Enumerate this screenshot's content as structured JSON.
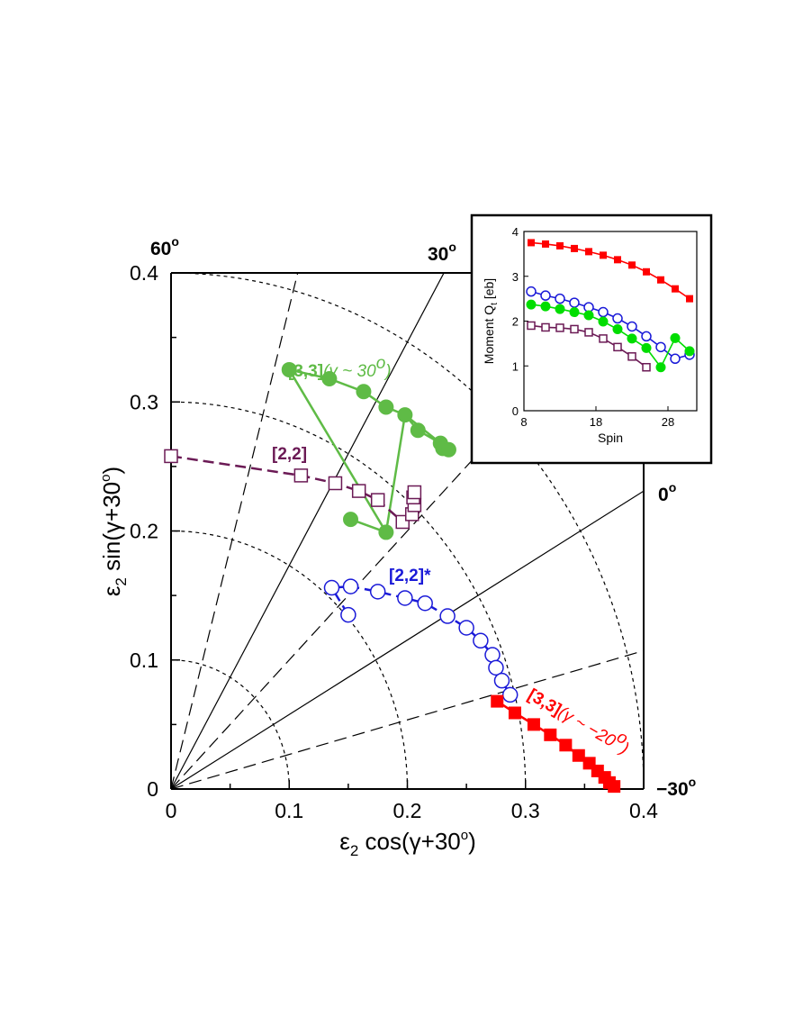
{
  "chart_data": [
    {
      "type": "scatter",
      "plot": "main",
      "title": "",
      "xlabel": "ε2 cos(γ+30o)",
      "ylabel": "ε2 sin(γ+30o)",
      "xlim": [
        0,
        0.4
      ],
      "ylim": [
        0,
        0.4
      ],
      "x_ticks": [
        "0",
        "0.1",
        "0.2",
        "0.3",
        "0.4"
      ],
      "y_ticks": [
        "0",
        "0.1",
        "0.2",
        "0.3",
        "0.4"
      ],
      "grid": false,
      "polar_arcs_radii": [
        0.1,
        0.2,
        0.3,
        0.4
      ],
      "solid_rays_deg": [
        30,
        60
      ],
      "dashed_rays_deg": [
        15,
        45,
        75
      ],
      "gamma_labels": [
        {
          "text": "60",
          "sup": "o"
        },
        {
          "text": "30",
          "sup": "o"
        },
        {
          "text": "0",
          "sup": "o"
        },
        {
          "text": "−30",
          "sup": "o"
        }
      ],
      "series": [
        {
          "name": "[3,3]",
          "annotation": "(γ ~ 30",
          "annotation_sup": "o",
          "annotation_close": ")",
          "color": "#5fbb46",
          "marker": "filled-circle",
          "line": "solid",
          "points": [
            [
              0.1,
              0.325
            ],
            [
              0.12,
              0.318
            ],
            [
              0.14,
              0.308
            ],
            [
              0.163,
              0.296
            ],
            [
              0.18,
              0.29
            ],
            [
              0.195,
              0.278
            ],
            [
              0.208,
              0.268
            ],
            [
              0.21,
              0.262
            ],
            [
              0.213,
              0.262
            ],
            [
              0.22,
              0.262
            ],
            [
              0.226,
              0.262
            ],
            [
              0.228,
              0.264
            ],
            [
              0.222,
              0.268
            ],
            [
              0.218,
              0.264
            ],
            [
              0.182,
              0.2
            ],
            [
              0.152,
              0.21
            ]
          ],
          "display_points": [
            [
              0.1,
              0.325
            ],
            [
              0.134,
              0.318
            ],
            [
              0.163,
              0.308
            ],
            [
              0.182,
              0.296
            ],
            [
              0.198,
              0.29
            ],
            [
              0.209,
              0.278
            ],
            [
              0.228,
              0.268
            ],
            [
              0.23,
              0.264
            ],
            [
              0.235,
              0.263
            ],
            [
              0.182,
              0.199
            ],
            [
              0.152,
              0.209
            ]
          ],
          "path_order": [
            0,
            1,
            2,
            3,
            4,
            5,
            6,
            7,
            8,
            4,
            9,
            10,
            9,
            0
          ]
        },
        {
          "name": "[2,2]",
          "color": "#6b1a55",
          "marker": "open-square",
          "line": "dashed",
          "points": [
            [
              0.0,
              0.258
            ],
            [
              0.11,
              0.243
            ],
            [
              0.139,
              0.237
            ],
            [
              0.159,
              0.231
            ],
            [
              0.175,
              0.224
            ],
            [
              0.196,
              0.207
            ],
            [
              0.204,
              0.213
            ],
            [
              0.206,
              0.22
            ],
            [
              0.205,
              0.226
            ],
            [
              0.206,
              0.23
            ]
          ]
        },
        {
          "name": "[2,2]*",
          "color": "#1a1ad8",
          "marker": "open-circle",
          "line": "dashed",
          "points": [
            [
              0.15,
              0.135
            ],
            [
              0.136,
              0.156
            ],
            [
              0.152,
              0.157
            ],
            [
              0.175,
              0.153
            ],
            [
              0.198,
              0.148
            ],
            [
              0.215,
              0.144
            ],
            [
              0.234,
              0.134
            ],
            [
              0.25,
              0.125
            ],
            [
              0.262,
              0.115
            ],
            [
              0.272,
              0.104
            ],
            [
              0.275,
              0.094
            ],
            [
              0.28,
              0.084
            ],
            [
              0.287,
              0.073
            ]
          ]
        },
        {
          "name": "[3,3]",
          "annotation": "(γ ~ −20",
          "annotation_sup": "o",
          "annotation_close": ")",
          "color": "#ff0000",
          "marker": "filled-square",
          "line": "solid",
          "points": [
            [
              0.276,
              0.068
            ],
            [
              0.291,
              0.059
            ],
            [
              0.307,
              0.05
            ],
            [
              0.321,
              0.042
            ],
            [
              0.334,
              0.034
            ],
            [
              0.345,
              0.026
            ],
            [
              0.354,
              0.02
            ],
            [
              0.361,
              0.014
            ],
            [
              0.367,
              0.009
            ],
            [
              0.371,
              0.005
            ],
            [
              0.375,
              0.002
            ]
          ]
        }
      ]
    },
    {
      "type": "line",
      "plot": "inset",
      "title": "",
      "xlabel": "Spin",
      "ylabel": "Moment  Q",
      "ylabel_sub": "t",
      "ylabel_unit": "[eb]",
      "xlim": [
        8,
        32
      ],
      "ylim": [
        0,
        4
      ],
      "x_ticks": [
        "8",
        "18",
        "28"
      ],
      "y_ticks": [
        "0",
        "1",
        "2",
        "3",
        "4"
      ],
      "grid": false,
      "series": [
        {
          "color": "#ff0000",
          "marker": "filled-square",
          "x": [
            9,
            11,
            13,
            15,
            17,
            19,
            21,
            23,
            25,
            27,
            29,
            31
          ],
          "y": [
            3.75,
            3.72,
            3.68,
            3.62,
            3.55,
            3.47,
            3.37,
            3.25,
            3.1,
            2.92,
            2.72,
            2.5
          ]
        },
        {
          "color": "#1a1ad8",
          "marker": "open-circle",
          "x": [
            9,
            11,
            13,
            15,
            17,
            19,
            21,
            23,
            25,
            27,
            29,
            31
          ],
          "y": [
            2.66,
            2.57,
            2.5,
            2.41,
            2.31,
            2.2,
            2.06,
            1.88,
            1.66,
            1.42,
            1.16,
            1.25
          ]
        },
        {
          "color": "#00dd00",
          "marker": "filled-circle",
          "x": [
            9,
            11,
            13,
            15,
            17,
            19,
            21,
            23,
            25,
            27,
            29,
            31
          ],
          "y": [
            2.37,
            2.33,
            2.27,
            2.2,
            2.13,
            1.99,
            1.82,
            1.61,
            1.4,
            0.97,
            1.62,
            1.33
          ]
        },
        {
          "color": "#6b1a55",
          "marker": "open-square",
          "x": [
            9,
            11,
            13,
            15,
            17,
            19,
            21,
            23,
            25
          ],
          "y": [
            1.9,
            1.86,
            1.85,
            1.82,
            1.75,
            1.61,
            1.42,
            1.21,
            0.97
          ]
        }
      ]
    }
  ]
}
